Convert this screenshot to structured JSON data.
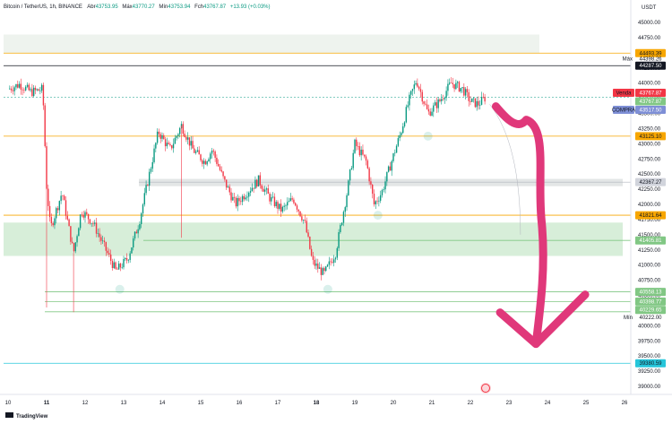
{
  "header": {
    "symbol": "Bitcoin / TetherUS, 1h, BINANCE",
    "o_label": "Abr",
    "o_val": "43753.95",
    "h_label": "Máx",
    "h_val": "43770.27",
    "l_label": "Mín",
    "l_val": "43753.94",
    "c_label": "Fch",
    "c_val": "43767.87",
    "change": "+13.93 (+0.03%)",
    "up_color": "#089981"
  },
  "currency": "USDT",
  "footer": {
    "brand": "TradingView"
  },
  "colors": {
    "up": "#089981",
    "down": "#f23645",
    "orange": "#f7a600",
    "green_line": "#81c784",
    "teal": "#26c6da",
    "magenta": "#e0387a",
    "zone_green": "#d7eed9",
    "zone_grey": "#e3e6e6"
  },
  "price_tags": [
    {
      "text": "44493.39",
      "bg": "#f7a600",
      "fg": "#131722",
      "price": 44493.39
    },
    {
      "text": "44287.50",
      "bg": "#131722",
      "fg": "#ffffff",
      "price": 44287.5
    },
    {
      "text": "43767.87",
      "bg": "#f23645",
      "fg": "#ffffff",
      "price": 43840
    },
    {
      "text": "43767.87",
      "bg": "#81c784",
      "fg": "#ffffff",
      "price": 43700
    },
    {
      "text": "43517.50",
      "bg": "#7e8fd6",
      "fg": "#ffffff",
      "price": 43560
    },
    {
      "text": "43125.10",
      "bg": "#f7a600",
      "fg": "#131722",
      "price": 43125.1
    },
    {
      "text": "42367.27",
      "bg": "#d1d4dc",
      "fg": "#131722",
      "price": 42367.27
    },
    {
      "text": "41821.64",
      "bg": "#f7a600",
      "fg": "#131722",
      "price": 41821.64
    },
    {
      "text": "41405.81",
      "bg": "#81c784",
      "fg": "#ffffff",
      "price": 41405.81
    },
    {
      "text": "40558.13",
      "bg": "#81c784",
      "fg": "#ffffff",
      "price": 40558.13
    },
    {
      "text": "40398.77",
      "bg": "#81c784",
      "fg": "#ffffff",
      "price": 40398.77
    },
    {
      "text": "40229.65",
      "bg": "#81c784",
      "fg": "#ffffff",
      "price": 40260
    },
    {
      "text": "39380.59",
      "bg": "#26c6da",
      "fg": "#131722",
      "price": 39380.59
    }
  ],
  "side_labels": [
    {
      "text": "Máx",
      "value": "44398.26",
      "price": 44398.26
    },
    {
      "text": "Venda",
      "price": 43840,
      "bg": "#f23645"
    },
    {
      "text": "COMPRA",
      "price": 43560,
      "bg": "#7e8fd6"
    },
    {
      "text": "Mín",
      "value": "40222.00",
      "price": 40140
    }
  ],
  "chart_data": {
    "type": "candlestick",
    "title": "Bitcoin / TetherUS, 1h, BINANCE",
    "x_axis_labels": [
      "10",
      "11",
      "12",
      "13",
      "14",
      "15",
      "16",
      "17",
      "18",
      "19",
      "20",
      "21",
      "22",
      "23",
      "24",
      "25",
      "26"
    ],
    "y_ticks": [
      "45000.00",
      "44750.00",
      "44500.00",
      "44250.00",
      "44000.00",
      "43750.00",
      "43500.00",
      "43250.00",
      "43000.00",
      "42750.00",
      "42500.00",
      "42250.00",
      "42000.00",
      "41750.00",
      "41500.00",
      "41250.00",
      "41000.00",
      "40750.00",
      "40500.00",
      "40250.00",
      "40000.00",
      "39750.00",
      "39500.00",
      "39250.00",
      "39000.00"
    ],
    "ylim": [
      38900,
      45200
    ],
    "xlim": [
      10.0,
      26.0
    ],
    "price_path": [
      [
        10.0,
        43900
      ],
      [
        10.3,
        43980
      ],
      [
        10.6,
        43850
      ],
      [
        10.9,
        43900
      ],
      [
        11.0,
        42300
      ],
      [
        11.1,
        41600
      ],
      [
        11.4,
        42200
      ],
      [
        11.7,
        41200
      ],
      [
        11.9,
        41900
      ],
      [
        12.2,
        41700
      ],
      [
        12.5,
        41300
      ],
      [
        12.8,
        40900
      ],
      [
        13.1,
        41100
      ],
      [
        13.4,
        41700
      ],
      [
        13.7,
        42600
      ],
      [
        13.9,
        43200
      ],
      [
        14.2,
        42900
      ],
      [
        14.5,
        43300
      ],
      [
        14.8,
        42900
      ],
      [
        15.1,
        42700
      ],
      [
        15.3,
        42900
      ],
      [
        15.6,
        42400
      ],
      [
        15.9,
        42000
      ],
      [
        16.2,
        42200
      ],
      [
        16.5,
        42400
      ],
      [
        16.8,
        42100
      ],
      [
        17.1,
        41900
      ],
      [
        17.4,
        42100
      ],
      [
        17.7,
        41700
      ],
      [
        17.9,
        41050
      ],
      [
        18.2,
        40850
      ],
      [
        18.5,
        41200
      ],
      [
        18.8,
        42200
      ],
      [
        19.0,
        43000
      ],
      [
        19.3,
        42700
      ],
      [
        19.5,
        42000
      ],
      [
        19.7,
        42200
      ],
      [
        19.9,
        42600
      ],
      [
        20.2,
        43200
      ],
      [
        20.4,
        43700
      ],
      [
        20.6,
        44050
      ],
      [
        20.9,
        43500
      ],
      [
        21.2,
        43700
      ],
      [
        21.5,
        44000
      ],
      [
        21.8,
        43900
      ],
      [
        22.0,
        43700
      ],
      [
        22.2,
        43650
      ],
      [
        22.4,
        43767.87
      ]
    ],
    "levels": [
      {
        "price": 44493.39,
        "style": "orange"
      },
      {
        "price": 44287.5,
        "style": "dark"
      },
      {
        "price": 43125.1,
        "style": "orange"
      },
      {
        "price": 42367.27,
        "style": "grey-zone"
      },
      {
        "price": 41821.64,
        "style": "orange"
      },
      {
        "price": 41405.81,
        "style": "green-zone"
      },
      {
        "price": 40558.13,
        "style": "green"
      },
      {
        "price": 40398.77,
        "style": "green"
      },
      {
        "price": 40229.65,
        "style": "green"
      },
      {
        "price": 39380.59,
        "style": "teal"
      }
    ],
    "zones": [
      {
        "from": 44493.39,
        "to": 44800,
        "color": "#eef3ee"
      },
      {
        "from": 41150,
        "to": 41700,
        "color": "#d7eed9"
      },
      {
        "from": 42300,
        "to": 42420,
        "color": "#e3e6e6"
      }
    ],
    "annotation": {
      "type": "down-arrow",
      "from": [
        22.8,
        43350
      ],
      "to": [
        23.7,
        39700
      ],
      "color": "#e0387a"
    },
    "legend": "none",
    "grid": false
  }
}
